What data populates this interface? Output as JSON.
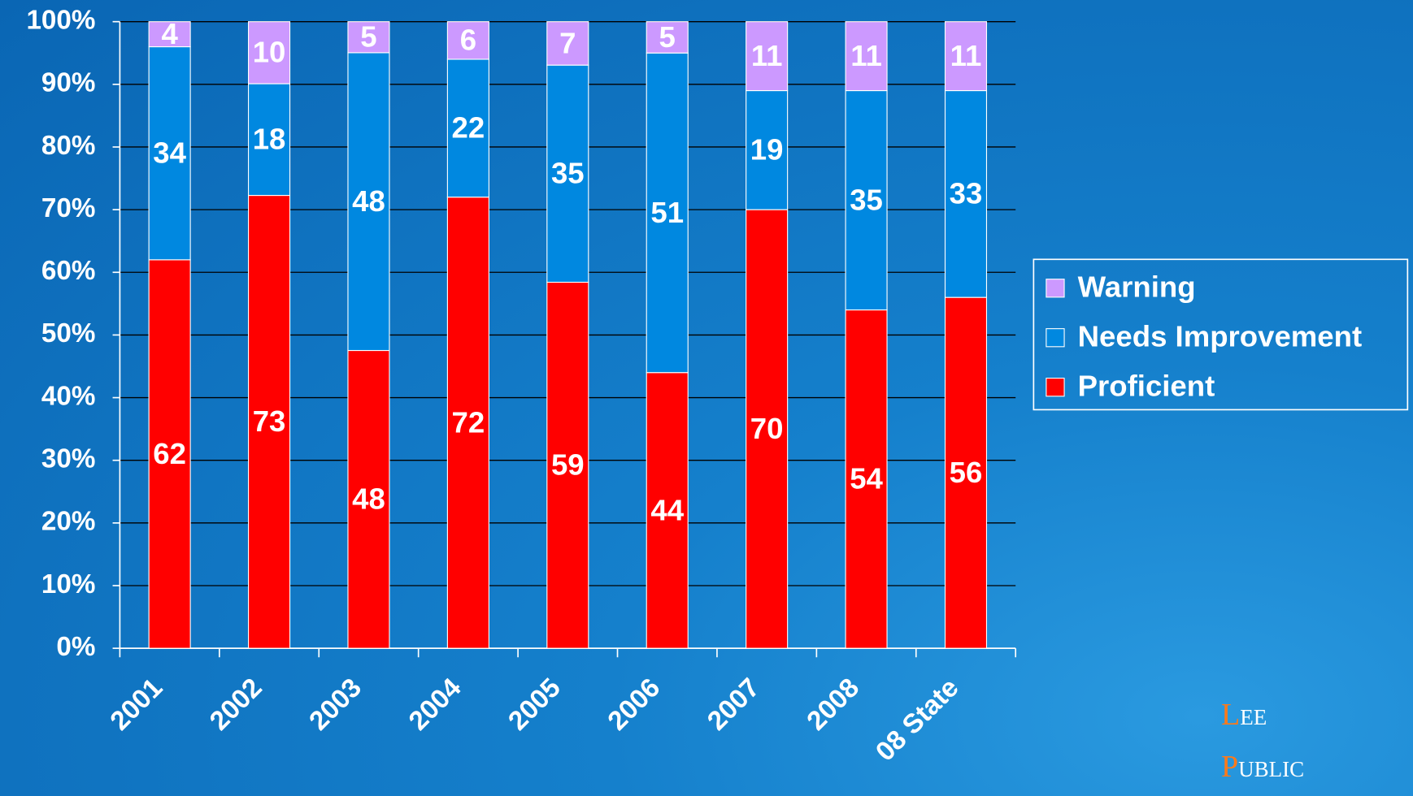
{
  "chart_data": {
    "type": "stacked_bar",
    "stacking": "percent",
    "categories": [
      "2001",
      "2002",
      "2003",
      "2004",
      "2005",
      "2006",
      "2007",
      "2008",
      "08 State"
    ],
    "series": [
      {
        "name": "Proficient",
        "color": "#ff0000",
        "values": [
          62,
          73,
          48,
          72,
          59,
          44,
          70,
          54,
          56
        ]
      },
      {
        "name": "Needs Improvement",
        "color": "#0088e0",
        "values": [
          34,
          18,
          48,
          22,
          35,
          51,
          19,
          35,
          33
        ]
      },
      {
        "name": "Warning",
        "color": "#cc99ff",
        "values": [
          4,
          10,
          5,
          6,
          7,
          5,
          11,
          11,
          11
        ]
      }
    ],
    "ylim": [
      0,
      100
    ],
    "yticks": [
      {
        "value": 0,
        "label": "0%"
      },
      {
        "value": 10,
        "label": "10%"
      },
      {
        "value": 20,
        "label": "20%"
      },
      {
        "value": 30,
        "label": "30%"
      },
      {
        "value": 40,
        "label": "40%"
      },
      {
        "value": 50,
        "label": "50%"
      },
      {
        "value": 60,
        "label": "60%"
      },
      {
        "value": 70,
        "label": "70%"
      },
      {
        "value": 80,
        "label": "80%"
      },
      {
        "value": 90,
        "label": "90%"
      },
      {
        "value": 100,
        "label": "100%"
      }
    ],
    "grid": true,
    "legend": "right"
  },
  "logo": [
    "Lee",
    "Public"
  ]
}
